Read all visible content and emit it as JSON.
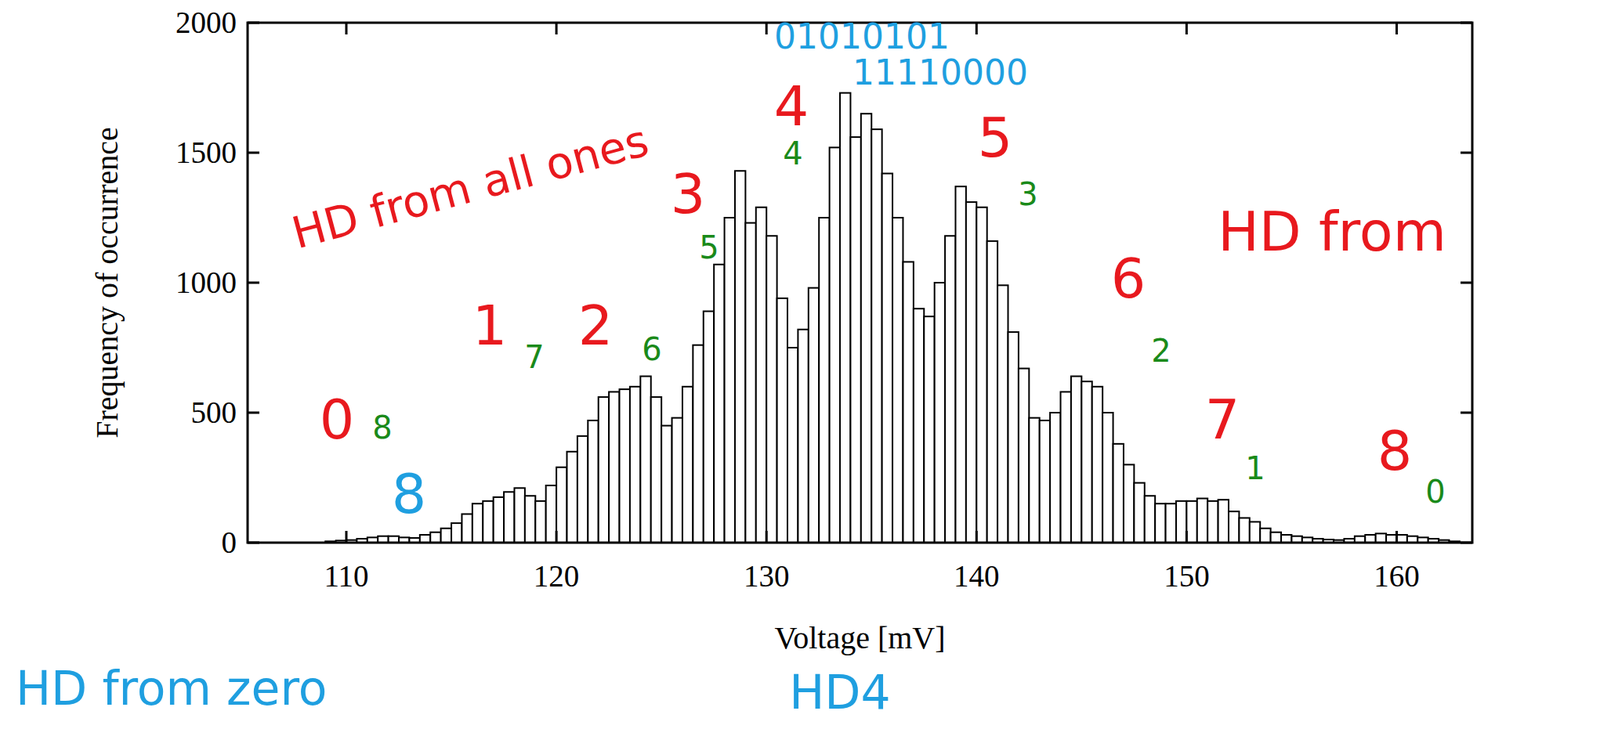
{
  "chart_data": {
    "type": "histogram",
    "xlabel": "Voltage [mV]",
    "ylabel": "Frequency of occurrence",
    "bins": [
      109,
      109.5,
      110,
      110.5,
      111,
      111.5,
      112,
      112.5,
      113,
      113.5,
      114,
      114.5,
      115,
      115.5,
      116,
      116.5,
      117,
      117.5,
      118,
      118.5,
      119,
      119.5,
      120,
      120.5,
      121,
      121.5,
      122,
      122.5,
      123,
      123.5,
      124,
      124.5,
      125,
      125.5,
      126,
      126.5,
      127,
      127.5,
      128,
      128.5,
      129,
      129.5,
      130,
      130.5,
      131,
      131.5,
      132,
      132.5,
      133,
      133.5,
      134,
      134.5,
      135,
      135.5,
      136,
      136.5,
      137,
      137.5,
      138,
      138.5,
      139,
      139.5,
      140,
      140.5,
      141,
      141.5,
      142,
      142.5,
      143,
      143.5,
      144,
      144.5,
      145,
      145.5,
      146,
      146.5,
      147,
      147.5,
      148,
      148.5,
      149,
      149.5,
      150,
      150.5,
      151,
      151.5,
      152,
      152.5,
      153,
      153.5,
      154,
      154.5,
      155,
      155.5,
      156,
      156.5,
      157,
      157.5,
      158,
      158.5,
      159,
      159.5,
      160,
      160.5,
      161,
      161.5,
      162,
      162.5,
      163
    ],
    "counts": [
      5,
      8,
      10,
      15,
      20,
      25,
      25,
      20,
      18,
      30,
      40,
      55,
      75,
      110,
      150,
      160,
      175,
      195,
      210,
      180,
      160,
      220,
      290,
      350,
      410,
      470,
      560,
      580,
      590,
      600,
      640,
      560,
      450,
      480,
      600,
      760,
      890,
      1070,
      1250,
      1430,
      1230,
      1290,
      1180,
      940,
      750,
      820,
      980,
      1250,
      1520,
      1730,
      1560,
      1650,
      1590,
      1420,
      1250,
      1080,
      900,
      870,
      1000,
      1180,
      1370,
      1310,
      1290,
      1160,
      990,
      810,
      670,
      480,
      470,
      500,
      580,
      640,
      620,
      600,
      500,
      380,
      300,
      230,
      180,
      150,
      150,
      160,
      160,
      170,
      160,
      165,
      120,
      95,
      80,
      55,
      40,
      30,
      25,
      20,
      15,
      12,
      10,
      15,
      25,
      30,
      35,
      30,
      30,
      25,
      20,
      15,
      10,
      5
    ],
    "color": "#ffffff",
    "xlim": [
      105.3,
      163.6
    ],
    "ylim": [
      0,
      2000
    ],
    "xticks": [
      110,
      120,
      130,
      140,
      150,
      160
    ],
    "yticks": [
      0,
      500,
      1000,
      1500,
      2000
    ],
    "grid": false,
    "annotations": [
      {
        "text": "HD from all ones",
        "color": "#e8191e"
      },
      {
        "text": "0",
        "color": "#e8191e"
      },
      {
        "text": "1",
        "color": "#e8191e"
      },
      {
        "text": "2",
        "color": "#e8191e"
      },
      {
        "text": "3",
        "color": "#e8191e"
      },
      {
        "text": "4",
        "color": "#e8191e"
      },
      {
        "text": "5",
        "color": "#e8191e"
      },
      {
        "text": "6",
        "color": "#e8191e"
      },
      {
        "text": "7",
        "color": "#e8191e"
      },
      {
        "text": "8",
        "color": "#e8191e"
      },
      {
        "text": "HD from",
        "color": "#e8191e"
      },
      {
        "text": "01010101",
        "color": "#1f9fe0"
      },
      {
        "text": "11110000",
        "color": "#1f9fe0"
      },
      {
        "text": "HD4",
        "color": "#1f9fe0"
      },
      {
        "text": "HD from zero",
        "color": "#1f9fe0"
      },
      {
        "text": "8",
        "color": "#1f9fe0"
      },
      {
        "text": "8",
        "color": "#1a8a1a"
      },
      {
        "text": "7",
        "color": "#1a8a1a"
      },
      {
        "text": "6",
        "color": "#1a8a1a"
      },
      {
        "text": "5",
        "color": "#1a8a1a"
      },
      {
        "text": "4",
        "color": "#1a8a1a"
      },
      {
        "text": "3",
        "color": "#1a8a1a"
      },
      {
        "text": "2",
        "color": "#1a8a1a"
      },
      {
        "text": "1",
        "color": "#1a8a1a"
      },
      {
        "text": "0",
        "color": "#1a8a1a"
      }
    ]
  }
}
